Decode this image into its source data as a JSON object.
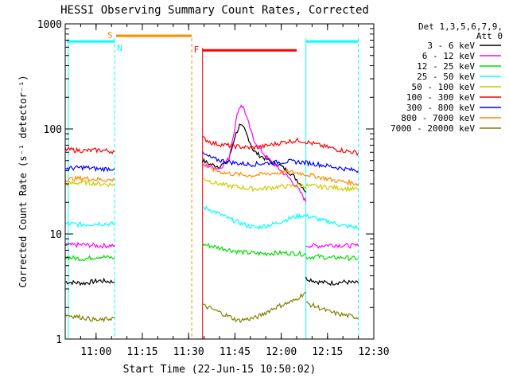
{
  "chart_data": {
    "type": "line",
    "title": "HESSI Observing Summary Count Rates, Corrected",
    "xlabel": "Start Time (22-Jun-15 10:50:02)",
    "ylabel": "Corrected Count Rate (s⁻¹ detector⁻¹)",
    "ylog": true,
    "xlim": [
      650,
      750
    ],
    "ylim": [
      1,
      1000
    ],
    "x_ticks": [
      {
        "v": 660,
        "label": "11:00"
      },
      {
        "v": 675,
        "label": "11:15"
      },
      {
        "v": 690,
        "label": "11:30"
      },
      {
        "v": 705,
        "label": "11:45"
      },
      {
        "v": 720,
        "label": "12:00"
      },
      {
        "v": 735,
        "label": "12:15"
      },
      {
        "v": 750,
        "label": "12:30"
      }
    ],
    "y_ticks": [
      {
        "v": 1,
        "label": "1"
      },
      {
        "v": 10,
        "label": "10"
      },
      {
        "v": 100,
        "label": "100"
      },
      {
        "v": 1000,
        "label": "1000"
      }
    ],
    "legend": {
      "position": "right",
      "header": [
        "Det 1,3,5,6,7,9,",
        "Att 0"
      ]
    },
    "series": [
      {
        "name": "3 - 6 keV",
        "color": "#000000",
        "segments": [
          {
            "x": [
              650,
              656,
              661,
              666
            ],
            "y": [
              3.5,
              3.4,
              3.6,
              3.5
            ]
          },
          {
            "x": [
              694.5,
              697,
              700,
              703,
              705,
              706.5,
              708,
              709.5,
              711,
              713,
              715,
              717,
              719,
              721,
              723,
              725,
              727,
              728
            ],
            "y": [
              50,
              46,
              44,
              50,
              85,
              108,
              100,
              80,
              62,
              56,
              52,
              48,
              46,
              42,
              38,
              33,
              28,
              25
            ]
          },
          {
            "x": [
              728,
              732,
              736,
              740,
              745
            ],
            "y": [
              3.8,
              3.5,
              3.4,
              3.5,
              3.4
            ]
          }
        ]
      },
      {
        "name": "6 - 12 keV",
        "color": "#ff00ff",
        "segments": [
          {
            "x": [
              650,
              656,
              661,
              666
            ],
            "y": [
              7.8,
              7.9,
              7.7,
              7.8
            ]
          },
          {
            "x": [
              694.5,
              697,
              700,
              703,
              705,
              706,
              707,
              708,
              709.5,
              711,
              713,
              715,
              717,
              720,
              723,
              725,
              727,
              728
            ],
            "y": [
              45,
              44,
              42,
              52,
              105,
              150,
              170,
              155,
              110,
              80,
              65,
              55,
              48,
              40,
              33,
              28,
              23,
              20
            ]
          },
          {
            "x": [
              728,
              732,
              736,
              740,
              745
            ],
            "y": [
              7.8,
              7.7,
              7.9,
              7.8,
              7.7
            ]
          }
        ]
      },
      {
        "name": "12 - 25 keV",
        "color": "#00dd00",
        "segments": [
          {
            "x": [
              650,
              656,
              661,
              666
            ],
            "y": [
              6.0,
              5.8,
              6.1,
              5.9
            ]
          },
          {
            "x": [
              694.5,
              698,
              702,
              706,
              710,
              714,
              718,
              722,
              726,
              728
            ],
            "y": [
              8.0,
              7.6,
              7.2,
              6.8,
              6.6,
              6.5,
              6.6,
              6.6,
              6.5,
              6.4
            ]
          },
          {
            "x": [
              728,
              732,
              736,
              740,
              745
            ],
            "y": [
              6.0,
              6.1,
              5.9,
              6.0,
              5.8
            ]
          }
        ]
      },
      {
        "name": "25 - 50 keV",
        "color": "#00ffff",
        "segments": [
          {
            "x": [
              650,
              656,
              661,
              666
            ],
            "y": [
              12.5,
              12.3,
              12.6,
              12.4
            ]
          },
          {
            "x": [
              694.5,
              697,
              700,
              703,
              706,
              709,
              712,
              715,
              718,
              721,
              724,
              727,
              730,
              733,
              736,
              740,
              745
            ],
            "y": [
              18,
              17,
              15.5,
              14,
              13,
              12,
              11.5,
              12,
              12.5,
              13.5,
              14.5,
              15,
              14.5,
              13.5,
              13,
              12,
              11.5
            ]
          }
        ]
      },
      {
        "name": "50 - 100 keV",
        "color": "#cccc00",
        "segments": [
          {
            "x": [
              650,
              656,
              661,
              666
            ],
            "y": [
              30,
              31,
              30,
              29.5
            ]
          },
          {
            "x": [
              694.5,
              698,
              702,
              706,
              710,
              714,
              718,
              722,
              726,
              730,
              734,
              738,
              742,
              745
            ],
            "y": [
              34,
              31,
              29,
              28,
              27,
              27,
              28,
              28.5,
              29,
              28.5,
              28,
              27.5,
              27,
              26.5
            ]
          }
        ]
      },
      {
        "name": "100 - 300 keV",
        "color": "#ff0000",
        "segments": [
          {
            "x": [
              650,
              656,
              661,
              666
            ],
            "y": [
              64,
              62,
              63,
              61
            ]
          },
          {
            "x": [
              694.5,
              698,
              702,
              706,
              710,
              714,
              718,
              722,
              726,
              730,
              734,
              738,
              742,
              745
            ],
            "y": [
              82,
              73,
              70,
              68,
              66,
              68,
              72,
              76,
              78,
              73,
              68,
              64,
              61,
              59
            ]
          }
        ]
      },
      {
        "name": "300 - 800 keV",
        "color": "#0000ff",
        "segments": [
          {
            "x": [
              650,
              656,
              661,
              666
            ],
            "y": [
              42,
              43,
              41.5,
              42
            ]
          },
          {
            "x": [
              694.5,
              698,
              702,
              706,
              710,
              714,
              718,
              722,
              726,
              730,
              734,
              738,
              742,
              745
            ],
            "y": [
              58,
              52,
              49,
              47,
              46,
              47,
              48,
              49,
              48.5,
              47,
              45,
              43,
              41,
              40
            ]
          }
        ]
      },
      {
        "name": "800 - 7000 keV",
        "color": "#ff8c00",
        "segments": [
          {
            "x": [
              650,
              656,
              661,
              666
            ],
            "y": [
              33,
              34,
              33,
              32.5
            ]
          },
          {
            "x": [
              694.5,
              698,
              702,
              706,
              710,
              714,
              718,
              722,
              726,
              730,
              734,
              738,
              742,
              745
            ],
            "y": [
              46,
              41,
              38,
              37,
              36,
              37,
              38,
              39,
              38,
              36,
              34,
              32,
              31,
              30
            ]
          }
        ]
      },
      {
        "name": "7000 - 20000 keV",
        "color": "#808000",
        "segments": [
          {
            "x": [
              650,
              656,
              661,
              666
            ],
            "y": [
              1.7,
              1.6,
              1.5,
              1.6
            ]
          },
          {
            "x": [
              694.5,
              700,
              706,
              712,
              718,
              724,
              728
            ],
            "y": [
              2.1,
              1.8,
              1.5,
              1.6,
              2.0,
              2.3,
              2.8
            ]
          },
          {
            "x": [
              728,
              732,
              736,
              740,
              745
            ],
            "y": [
              2.2,
              2.0,
              1.8,
              1.7,
              1.6
            ]
          }
        ]
      }
    ],
    "intervals": [
      {
        "label": "S",
        "color": "#ff8c00",
        "x0": 666.5,
        "x1": 691,
        "y": 770
      },
      {
        "label": "F",
        "color": "#ff0000",
        "x0": 694.5,
        "x1": 725,
        "y": 560
      }
    ],
    "markers": [
      {
        "label": "N",
        "color": "#00ffff",
        "x": 666
      }
    ]
  }
}
